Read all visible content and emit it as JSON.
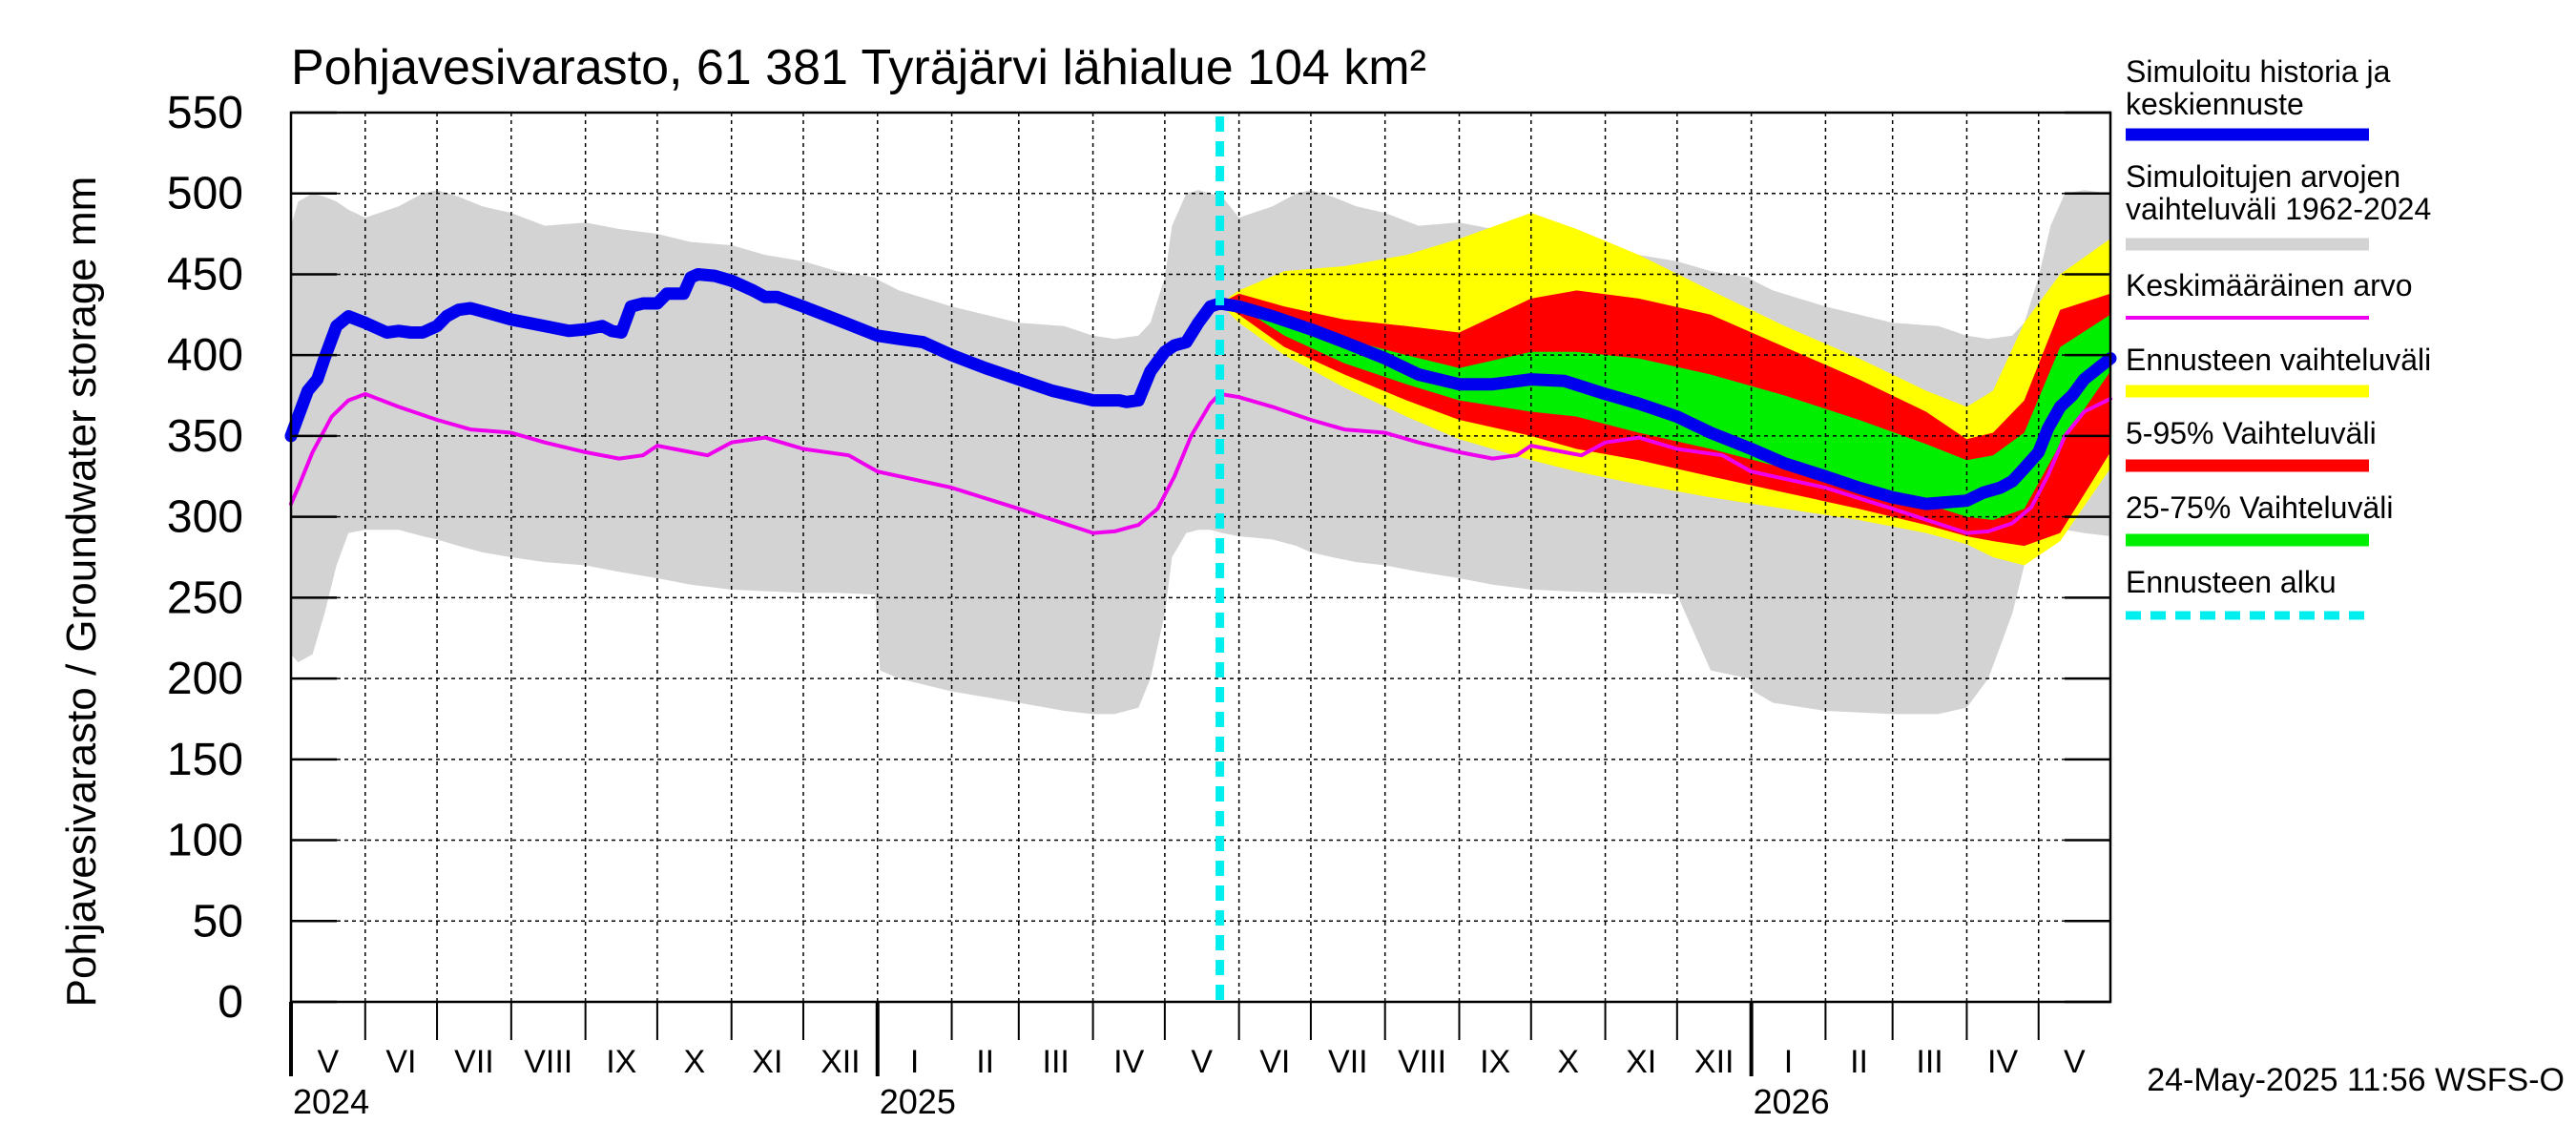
{
  "chart_data": {
    "type": "area",
    "title": "Pohjavesivarasto, 61 381 Tyräjärvi lähialue 104 km²",
    "ylabel": "Pohjavesivarasto / Groundwater storage   mm",
    "ylim": [
      0,
      550
    ],
    "yticks": [
      0,
      50,
      100,
      150,
      200,
      250,
      300,
      350,
      400,
      450,
      500,
      550
    ],
    "xlim": [
      "2024-05-01",
      "2026-05-31"
    ],
    "forecast_start": "2025-05-24",
    "timestamp": "24-May-2025 11:56 WSFS-O",
    "months": [
      {
        "label": "V",
        "start": "2024-05-01",
        "end": "2024-06-01"
      },
      {
        "label": "VI",
        "start": "2024-06-01",
        "end": "2024-07-01"
      },
      {
        "label": "VII",
        "start": "2024-07-01",
        "end": "2024-08-01"
      },
      {
        "label": "VIII",
        "start": "2024-08-01",
        "end": "2024-09-01"
      },
      {
        "label": "IX",
        "start": "2024-09-01",
        "end": "2024-10-01"
      },
      {
        "label": "X",
        "start": "2024-10-01",
        "end": "2024-11-01"
      },
      {
        "label": "XI",
        "start": "2024-11-01",
        "end": "2024-12-01"
      },
      {
        "label": "XII",
        "start": "2024-12-01",
        "end": "2025-01-01"
      },
      {
        "label": "I",
        "start": "2025-01-01",
        "end": "2025-02-01"
      },
      {
        "label": "II",
        "start": "2025-02-01",
        "end": "2025-03-01"
      },
      {
        "label": "III",
        "start": "2025-03-01",
        "end": "2025-04-01"
      },
      {
        "label": "IV",
        "start": "2025-04-01",
        "end": "2025-05-01"
      },
      {
        "label": "V",
        "start": "2025-05-01",
        "end": "2025-06-01"
      },
      {
        "label": "VI",
        "start": "2025-06-01",
        "end": "2025-07-01"
      },
      {
        "label": "VII",
        "start": "2025-07-01",
        "end": "2025-08-01"
      },
      {
        "label": "VIII",
        "start": "2025-08-01",
        "end": "2025-09-01"
      },
      {
        "label": "IX",
        "start": "2025-09-01",
        "end": "2025-10-01"
      },
      {
        "label": "X",
        "start": "2025-10-01",
        "end": "2025-11-01"
      },
      {
        "label": "XI",
        "start": "2025-11-01",
        "end": "2025-12-01"
      },
      {
        "label": "XII",
        "start": "2025-12-01",
        "end": "2026-01-01"
      },
      {
        "label": "I",
        "start": "2026-01-01",
        "end": "2026-02-01"
      },
      {
        "label": "II",
        "start": "2026-02-01",
        "end": "2026-03-01"
      },
      {
        "label": "III",
        "start": "2026-03-01",
        "end": "2026-04-01"
      },
      {
        "label": "IV",
        "start": "2026-04-01",
        "end": "2026-05-01"
      },
      {
        "label": "V",
        "start": "2026-05-01",
        "end": "2026-05-31"
      }
    ],
    "years": [
      {
        "label": "2024",
        "date": "2024-05-01"
      },
      {
        "label": "2025",
        "date": "2025-01-01"
      },
      {
        "label": "2026",
        "date": "2026-01-01"
      }
    ],
    "legend": [
      {
        "label": "Simuloitu historia ja keskiennuste",
        "color": "#0000ee",
        "kind": "thick"
      },
      {
        "label": "Simuloitujen arvojen vaihteluväli 1962-2024",
        "color": "#d3d3d3",
        "kind": "thick"
      },
      {
        "label": "Keskimääräinen arvo",
        "color": "#ee00ee",
        "kind": "thin"
      },
      {
        "label": "Ennusteen vaihteluväli",
        "color": "#ffff00",
        "kind": "thick"
      },
      {
        "label": "5-95% Vaihteluväli",
        "color": "#ff0000",
        "kind": "thick"
      },
      {
        "label": "25-75% Vaihteluväli",
        "color": "#00ee00",
        "kind": "thick"
      },
      {
        "label": "Ennusteen alku",
        "color": "#00eeee",
        "kind": "dashed"
      }
    ],
    "series": {
      "hist_range": {
        "name": "Simuloitujen arvojen vaihteluväli 1962-2024",
        "color": "#d3d3d3",
        "x": [
          "2024-05-01",
          "2024-05-04",
          "2024-05-10",
          "2024-05-15",
          "2024-05-20",
          "2024-05-25",
          "2024-06-01",
          "2024-06-15",
          "2024-06-25",
          "2024-07-01",
          "2024-07-10",
          "2024-07-20",
          "2024-08-01",
          "2024-08-15",
          "2024-09-01",
          "2024-09-15",
          "2024-10-01",
          "2024-10-15",
          "2024-11-01",
          "2024-11-15",
          "2024-12-01",
          "2024-12-15",
          "2024-12-31",
          "2025-01-02",
          "2025-01-10",
          "2025-02-01",
          "2025-03-01",
          "2025-03-20",
          "2025-04-01",
          "2025-04-10",
          "2025-04-20",
          "2025-04-25",
          "2025-05-01",
          "2025-05-04",
          "2025-05-10",
          "2025-05-15",
          "2025-05-20",
          "2025-05-25",
          "2025-06-01",
          "2025-06-15",
          "2025-06-25",
          "2025-07-01",
          "2025-07-10",
          "2025-07-20",
          "2025-08-01",
          "2025-08-15",
          "2025-09-01",
          "2025-09-15",
          "2025-10-01",
          "2025-10-15",
          "2025-11-01",
          "2025-11-15",
          "2025-12-01",
          "2025-12-15",
          "2025-12-31",
          "2026-01-02",
          "2026-01-10",
          "2026-02-01",
          "2026-03-01",
          "2026-03-20",
          "2026-04-01",
          "2026-04-10",
          "2026-04-20",
          "2026-04-25",
          "2026-05-01",
          "2026-05-06",
          "2026-05-12",
          "2026-05-20",
          "2026-05-31"
        ],
        "upper": [
          480,
          495,
          500,
          498,
          495,
          490,
          485,
          492,
          500,
          502,
          498,
          492,
          488,
          480,
          482,
          478,
          475,
          470,
          468,
          462,
          458,
          452,
          448,
          446,
          440,
          430,
          420,
          418,
          412,
          410,
          412,
          420,
          448,
          480,
          500,
          502,
          500,
          498,
          485,
          492,
          500,
          502,
          498,
          492,
          488,
          480,
          482,
          478,
          475,
          470,
          468,
          462,
          458,
          452,
          448,
          446,
          440,
          430,
          420,
          418,
          412,
          410,
          412,
          420,
          448,
          480,
          500,
          502,
          500
        ],
        "lower": [
          215,
          210,
          215,
          240,
          270,
          290,
          292,
          292,
          288,
          286,
          282,
          278,
          275,
          272,
          270,
          266,
          262,
          258,
          255,
          254,
          253,
          253,
          252,
          205,
          200,
          192,
          185,
          180,
          178,
          178,
          182,
          200,
          240,
          275,
          290,
          292,
          292,
          290,
          288,
          286,
          282,
          278,
          275,
          272,
          270,
          266,
          262,
          258,
          255,
          254,
          253,
          253,
          252,
          205,
          200,
          192,
          185,
          180,
          178,
          178,
          182,
          200,
          240,
          270,
          290,
          292,
          292,
          290,
          288
        ]
      },
      "forecast_range": {
        "name": "Ennusteen vaihteluväli",
        "color": "#ffff00",
        "x": [
          "2025-05-24",
          "2025-06-01",
          "2025-06-20",
          "2025-07-15",
          "2025-08-10",
          "2025-09-01",
          "2025-10-01",
          "2025-10-20",
          "2025-11-15",
          "2025-12-15",
          "2026-01-15",
          "2026-02-15",
          "2026-03-15",
          "2026-04-01",
          "2026-04-12",
          "2026-04-25",
          "2026-05-10",
          "2026-05-31"
        ],
        "upper": [
          432,
          440,
          452,
          455,
          462,
          472,
          488,
          478,
          462,
          440,
          418,
          398,
          378,
          368,
          378,
          420,
          450,
          472
        ],
        "lower": [
          432,
          420,
          400,
          380,
          362,
          348,
          335,
          328,
          320,
          312,
          305,
          298,
          290,
          283,
          275,
          270,
          285,
          330
        ]
      },
      "p5_95": {
        "name": "5-95% Vaihteluväli",
        "color": "#ff0000",
        "x": [
          "2025-05-24",
          "2025-06-01",
          "2025-06-20",
          "2025-07-15",
          "2025-08-10",
          "2025-09-01",
          "2025-10-01",
          "2025-10-20",
          "2025-11-15",
          "2025-12-15",
          "2026-01-15",
          "2026-02-15",
          "2026-03-15",
          "2026-04-01",
          "2026-04-12",
          "2026-04-25",
          "2026-05-10",
          "2026-05-31"
        ],
        "upper": [
          432,
          438,
          430,
          422,
          418,
          414,
          435,
          440,
          435,
          425,
          405,
          385,
          365,
          348,
          352,
          372,
          428,
          438
        ],
        "lower": [
          432,
          425,
          405,
          388,
          372,
          360,
          350,
          342,
          335,
          325,
          315,
          305,
          295,
          288,
          285,
          282,
          290,
          340
        ]
      },
      "p25_75": {
        "name": "25-75% Vaihteluväli",
        "color": "#00ee00",
        "x": [
          "2025-05-24",
          "2025-06-01",
          "2025-06-20",
          "2025-07-15",
          "2025-08-10",
          "2025-09-01",
          "2025-10-01",
          "2025-10-20",
          "2025-11-15",
          "2025-12-15",
          "2026-01-15",
          "2026-02-15",
          "2026-03-15",
          "2026-04-01",
          "2026-04-12",
          "2026-04-25",
          "2026-05-10",
          "2026-05-31"
        ],
        "upper": [
          432,
          432,
          420,
          410,
          400,
          392,
          402,
          402,
          398,
          388,
          375,
          360,
          345,
          335,
          338,
          352,
          405,
          425
        ],
        "lower": [
          432,
          430,
          412,
          395,
          382,
          372,
          365,
          362,
          352,
          342,
          330,
          320,
          308,
          300,
          298,
          305,
          345,
          390
        ]
      },
      "mean": {
        "name": "Keskimääräinen arvo",
        "color": "#ee00ee",
        "x": [
          "2024-05-01",
          "2024-05-04",
          "2024-05-10",
          "2024-05-18",
          "2024-05-25",
          "2024-06-01",
          "2024-06-15",
          "2024-07-01",
          "2024-07-15",
          "2024-08-01",
          "2024-08-15",
          "2024-09-01",
          "2024-09-15",
          "2024-09-25",
          "2024-10-01",
          "2024-10-15",
          "2024-10-22",
          "2024-11-01",
          "2024-11-15",
          "2024-12-01",
          "2024-12-20",
          "2025-01-01",
          "2025-02-01",
          "2025-03-01",
          "2025-04-01",
          "2025-04-10",
          "2025-04-20",
          "2025-04-28",
          "2025-05-05",
          "2025-05-12",
          "2025-05-20",
          "2025-05-24",
          "2025-06-01",
          "2025-06-15",
          "2025-07-01",
          "2025-07-15",
          "2025-08-01",
          "2025-08-15",
          "2025-09-01",
          "2025-09-15",
          "2025-09-25",
          "2025-10-01",
          "2025-10-15",
          "2025-10-22",
          "2025-11-01",
          "2025-11-15",
          "2025-12-01",
          "2025-12-20",
          "2026-01-01",
          "2026-02-01",
          "2026-03-01",
          "2026-04-01",
          "2026-04-10",
          "2026-04-20",
          "2026-04-28",
          "2026-05-05",
          "2026-05-12",
          "2026-05-20",
          "2026-05-31"
        ],
        "values": [
          308,
          318,
          340,
          362,
          372,
          376,
          368,
          360,
          354,
          352,
          346,
          340,
          336,
          338,
          344,
          340,
          338,
          346,
          349,
          342,
          338,
          328,
          318,
          305,
          290,
          291,
          295,
          305,
          325,
          350,
          370,
          376,
          374,
          368,
          360,
          354,
          352,
          346,
          340,
          336,
          338,
          344,
          340,
          338,
          346,
          349,
          342,
          338,
          328,
          318,
          305,
          290,
          291,
          296,
          306,
          326,
          350,
          365,
          373
        ]
      },
      "simulated": {
        "name": "Simuloitu historia ja keskiennuste",
        "color": "#0000ee",
        "x": [
          "2024-05-01",
          "2024-05-04",
          "2024-05-08",
          "2024-05-12",
          "2024-05-15",
          "2024-05-20",
          "2024-05-25",
          "2024-06-01",
          "2024-06-10",
          "2024-06-15",
          "2024-06-20",
          "2024-06-25",
          "2024-07-01",
          "2024-07-05",
          "2024-07-10",
          "2024-07-15",
          "2024-07-20",
          "2024-08-01",
          "2024-08-15",
          "2024-08-25",
          "2024-09-01",
          "2024-09-08",
          "2024-09-12",
          "2024-09-16",
          "2024-09-20",
          "2024-09-25",
          "2024-10-01",
          "2024-10-05",
          "2024-10-12",
          "2024-10-15",
          "2024-10-18",
          "2024-10-25",
          "2024-11-01",
          "2024-11-10",
          "2024-11-15",
          "2024-11-20",
          "2024-12-01",
          "2024-12-15",
          "2025-01-01",
          "2025-01-10",
          "2025-01-20",
          "2025-02-01",
          "2025-02-15",
          "2025-03-01",
          "2025-03-15",
          "2025-04-01",
          "2025-04-12",
          "2025-04-15",
          "2025-04-20",
          "2025-04-25",
          "2025-05-01",
          "2025-05-05",
          "2025-05-10",
          "2025-05-15",
          "2025-05-20",
          "2025-05-24",
          "2025-06-01",
          "2025-06-15",
          "2025-07-01",
          "2025-07-15",
          "2025-08-01",
          "2025-08-15",
          "2025-09-01",
          "2025-09-15",
          "2025-10-01",
          "2025-10-15",
          "2025-11-01",
          "2025-11-15",
          "2025-12-01",
          "2025-12-15",
          "2026-01-01",
          "2026-01-15",
          "2026-02-01",
          "2026-02-15",
          "2026-03-01",
          "2026-03-15",
          "2026-04-01",
          "2026-04-08",
          "2026-04-15",
          "2026-04-20",
          "2026-04-25",
          "2026-05-01",
          "2026-05-05",
          "2026-05-10",
          "2026-05-15",
          "2026-05-20",
          "2026-05-31"
        ],
        "values": [
          350,
          362,
          378,
          385,
          398,
          418,
          424,
          420,
          414,
          415,
          414,
          414,
          418,
          424,
          428,
          429,
          427,
          422,
          418,
          415,
          416,
          418,
          415,
          414,
          430,
          432,
          432,
          438,
          438,
          448,
          450,
          449,
          446,
          440,
          436,
          436,
          430,
          422,
          412,
          410,
          408,
          400,
          392,
          385,
          378,
          372,
          372,
          371,
          372,
          390,
          402,
          406,
          408,
          420,
          430,
          432,
          430,
          424,
          416,
          408,
          398,
          388,
          382,
          382,
          385,
          384,
          376,
          370,
          362,
          352,
          342,
          333,
          325,
          318,
          312,
          308,
          310,
          315,
          318,
          322,
          330,
          340,
          355,
          368,
          375,
          385,
          398
        ]
      }
    }
  }
}
